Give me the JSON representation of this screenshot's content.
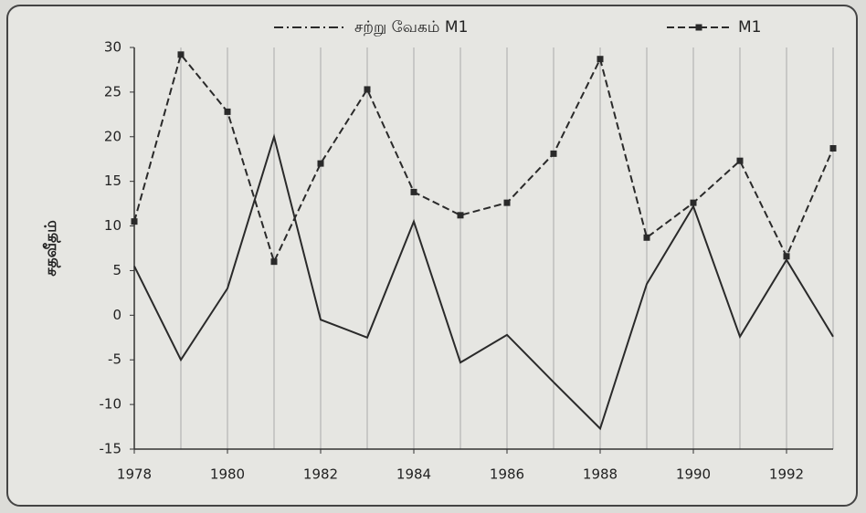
{
  "chart_data": {
    "type": "line",
    "ylabel": "சதவீதம்",
    "x": [
      1978,
      1979,
      1980,
      1981,
      1982,
      1983,
      1984,
      1985,
      1986,
      1987,
      1988,
      1989,
      1990,
      1991,
      1992,
      1993
    ],
    "series": [
      {
        "name": "சற்று வேகம் M1",
        "color": "#2a2a2a",
        "style": "dashdot",
        "marker": "none",
        "values": [
          5.5,
          -5,
          3,
          20,
          -0.5,
          -2.5,
          10.5,
          -5.3,
          -2.2,
          -7.5,
          -12.7,
          3.5,
          12.2,
          -2.4,
          6.2,
          -2.4
        ]
      },
      {
        "name": "M1",
        "color": "#2a2a2a",
        "style": "dashed",
        "marker": "square",
        "values": [
          10.5,
          29.2,
          22.8,
          6,
          17,
          25.3,
          13.8,
          11.2,
          12.6,
          18.1,
          28.7,
          8.7,
          12.6,
          17.3,
          6.6,
          18.7
        ]
      }
    ],
    "xlim": [
      1978,
      1993
    ],
    "xticks": [
      1978,
      1980,
      1982,
      1984,
      1986,
      1988,
      1990,
      1992
    ],
    "ylim": [
      -15,
      30
    ],
    "yticks": [
      -15,
      -10,
      -5,
      0,
      5,
      10,
      15,
      20,
      25,
      30
    ],
    "grid": true,
    "legend": "top"
  }
}
